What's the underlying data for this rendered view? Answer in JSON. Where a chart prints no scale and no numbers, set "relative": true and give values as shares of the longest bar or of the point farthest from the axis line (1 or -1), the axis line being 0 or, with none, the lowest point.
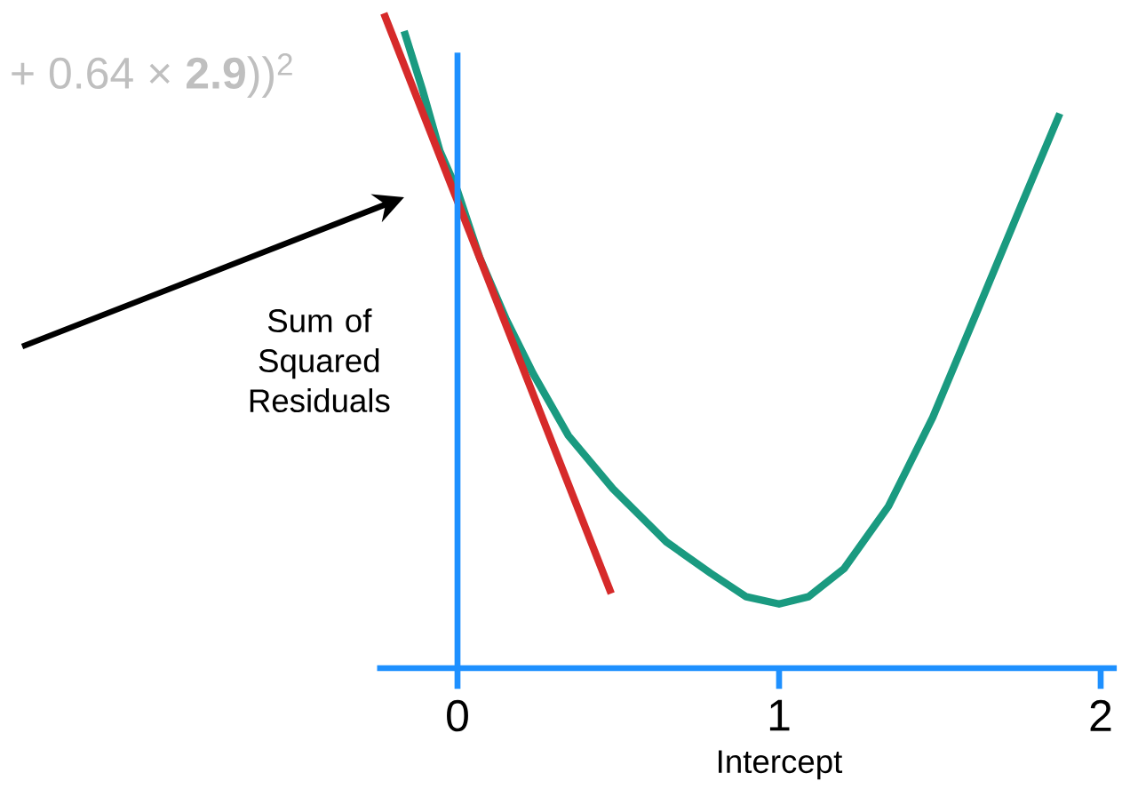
{
  "chart_data": {
    "type": "line",
    "relative": true,
    "xlabel": "Intercept",
    "ylabel": "Sum of Squared Residuals",
    "xlim": [
      -0.25,
      2.05
    ],
    "xticks": [
      0,
      1,
      2
    ],
    "ref_lines": [
      {
        "axis": "x",
        "value": 0,
        "color": "#1e90ff"
      }
    ],
    "annotations": [
      "+ 0.64 × **2.9**))$^{2}$"
    ],
    "series": [
      {
        "color": "#1a9a80",
        "x": [
          -0.166,
          -0.11,
          -0.055,
          0,
          0.069,
          0.152,
          0.235,
          0.345,
          0.483,
          0.649,
          0.787,
          0.898,
          1.0,
          1.091,
          1.202,
          1.34,
          1.478,
          1.616,
          1.754,
          1.873
        ],
        "values": [
          0.973,
          0.885,
          0.79,
          0.729,
          0.627,
          0.532,
          0.45,
          0.355,
          0.274,
          0.193,
          0.145,
          0.109,
          0.098,
          0.109,
          0.152,
          0.247,
          0.383,
          0.545,
          0.708,
          0.847
        ]
      },
      {
        "color": "#d62a2a",
        "x": [
          -0.229,
          0.478
        ],
        "values": [
          1.0,
          0.114
        ]
      }
    ]
  }
}
